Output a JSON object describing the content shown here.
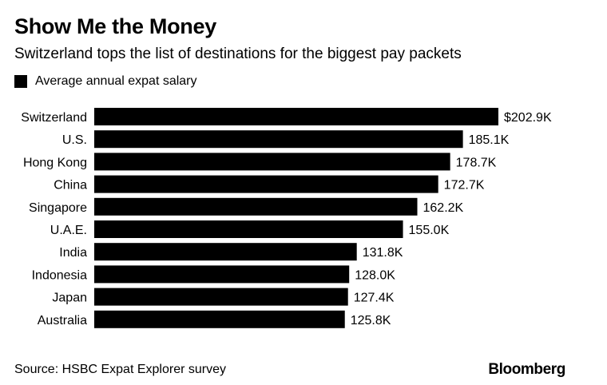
{
  "title": "Show Me the Money",
  "subtitle": "Switzerland tops the list of destinations for the biggest pay packets",
  "legend": {
    "label": "Average annual expat salary",
    "color": "#000000"
  },
  "footer": {
    "source": "Source: HSBC Expat Explorer survey",
    "brand": "Bloomberg"
  },
  "chart_data": {
    "type": "bar",
    "orientation": "horizontal",
    "title": "Show Me the Money",
    "xlabel": "",
    "ylabel": "",
    "xlim": [
      0,
      202.9
    ],
    "grid": false,
    "legend_position": "top-left",
    "categories": [
      "Switzerland",
      "U.S.",
      "Hong Kong",
      "China",
      "Singapore",
      "U.A.E.",
      "India",
      "Indonesia",
      "Japan",
      "Australia"
    ],
    "series": [
      {
        "name": "Average annual expat salary",
        "color": "#000000",
        "values": [
          202.9,
          185.1,
          178.7,
          172.7,
          162.2,
          155.0,
          131.8,
          128.0,
          127.4,
          125.8
        ],
        "labels": [
          "$202.9K",
          "185.1K",
          "178.7K",
          "172.7K",
          "162.2K",
          "155.0K",
          "131.8K",
          "128.0K",
          "127.4K",
          "125.8K"
        ]
      }
    ]
  }
}
